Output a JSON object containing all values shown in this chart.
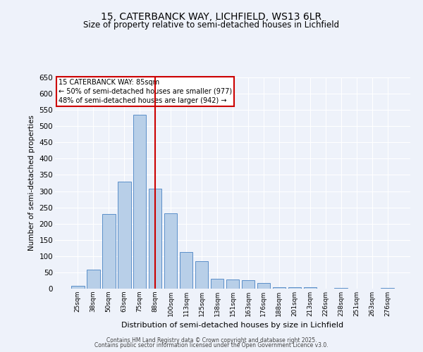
{
  "title_line1": "15, CATERBANCK WAY, LICHFIELD, WS13 6LR",
  "title_line2": "Size of property relative to semi-detached houses in Lichfield",
  "xlabel": "Distribution of semi-detached houses by size in Lichfield",
  "ylabel": "Number of semi-detached properties",
  "categories": [
    "25sqm",
    "38sqm",
    "50sqm",
    "63sqm",
    "75sqm",
    "88sqm",
    "100sqm",
    "113sqm",
    "125sqm",
    "138sqm",
    "151sqm",
    "163sqm",
    "176sqm",
    "188sqm",
    "201sqm",
    "213sqm",
    "226sqm",
    "238sqm",
    "251sqm",
    "263sqm",
    "276sqm"
  ],
  "values": [
    8,
    58,
    230,
    330,
    535,
    308,
    232,
    113,
    85,
    30,
    28,
    25,
    18,
    5,
    5,
    5,
    1,
    2,
    1,
    1,
    3
  ],
  "bar_color": "#b8cfe8",
  "bar_edge_color": "#5b8fc9",
  "vline_x": 5,
  "vline_color": "#cc0000",
  "annotation_title": "15 CATERBANCK WAY: 85sqm",
  "annotation_line1": "← 50% of semi-detached houses are smaller (977)",
  "annotation_line2": "48% of semi-detached houses are larger (942) →",
  "annotation_box_color": "#cc0000",
  "ylim": [
    0,
    650
  ],
  "yticks": [
    0,
    50,
    100,
    150,
    200,
    250,
    300,
    350,
    400,
    450,
    500,
    550,
    600,
    650
  ],
  "footer_line1": "Contains HM Land Registry data © Crown copyright and database right 2025.",
  "footer_line2": "Contains public sector information licensed under the Open Government Licence v3.0.",
  "bg_color": "#eef2fa",
  "plot_bg_color": "#eef2fa",
  "grid_color": "#ffffff"
}
